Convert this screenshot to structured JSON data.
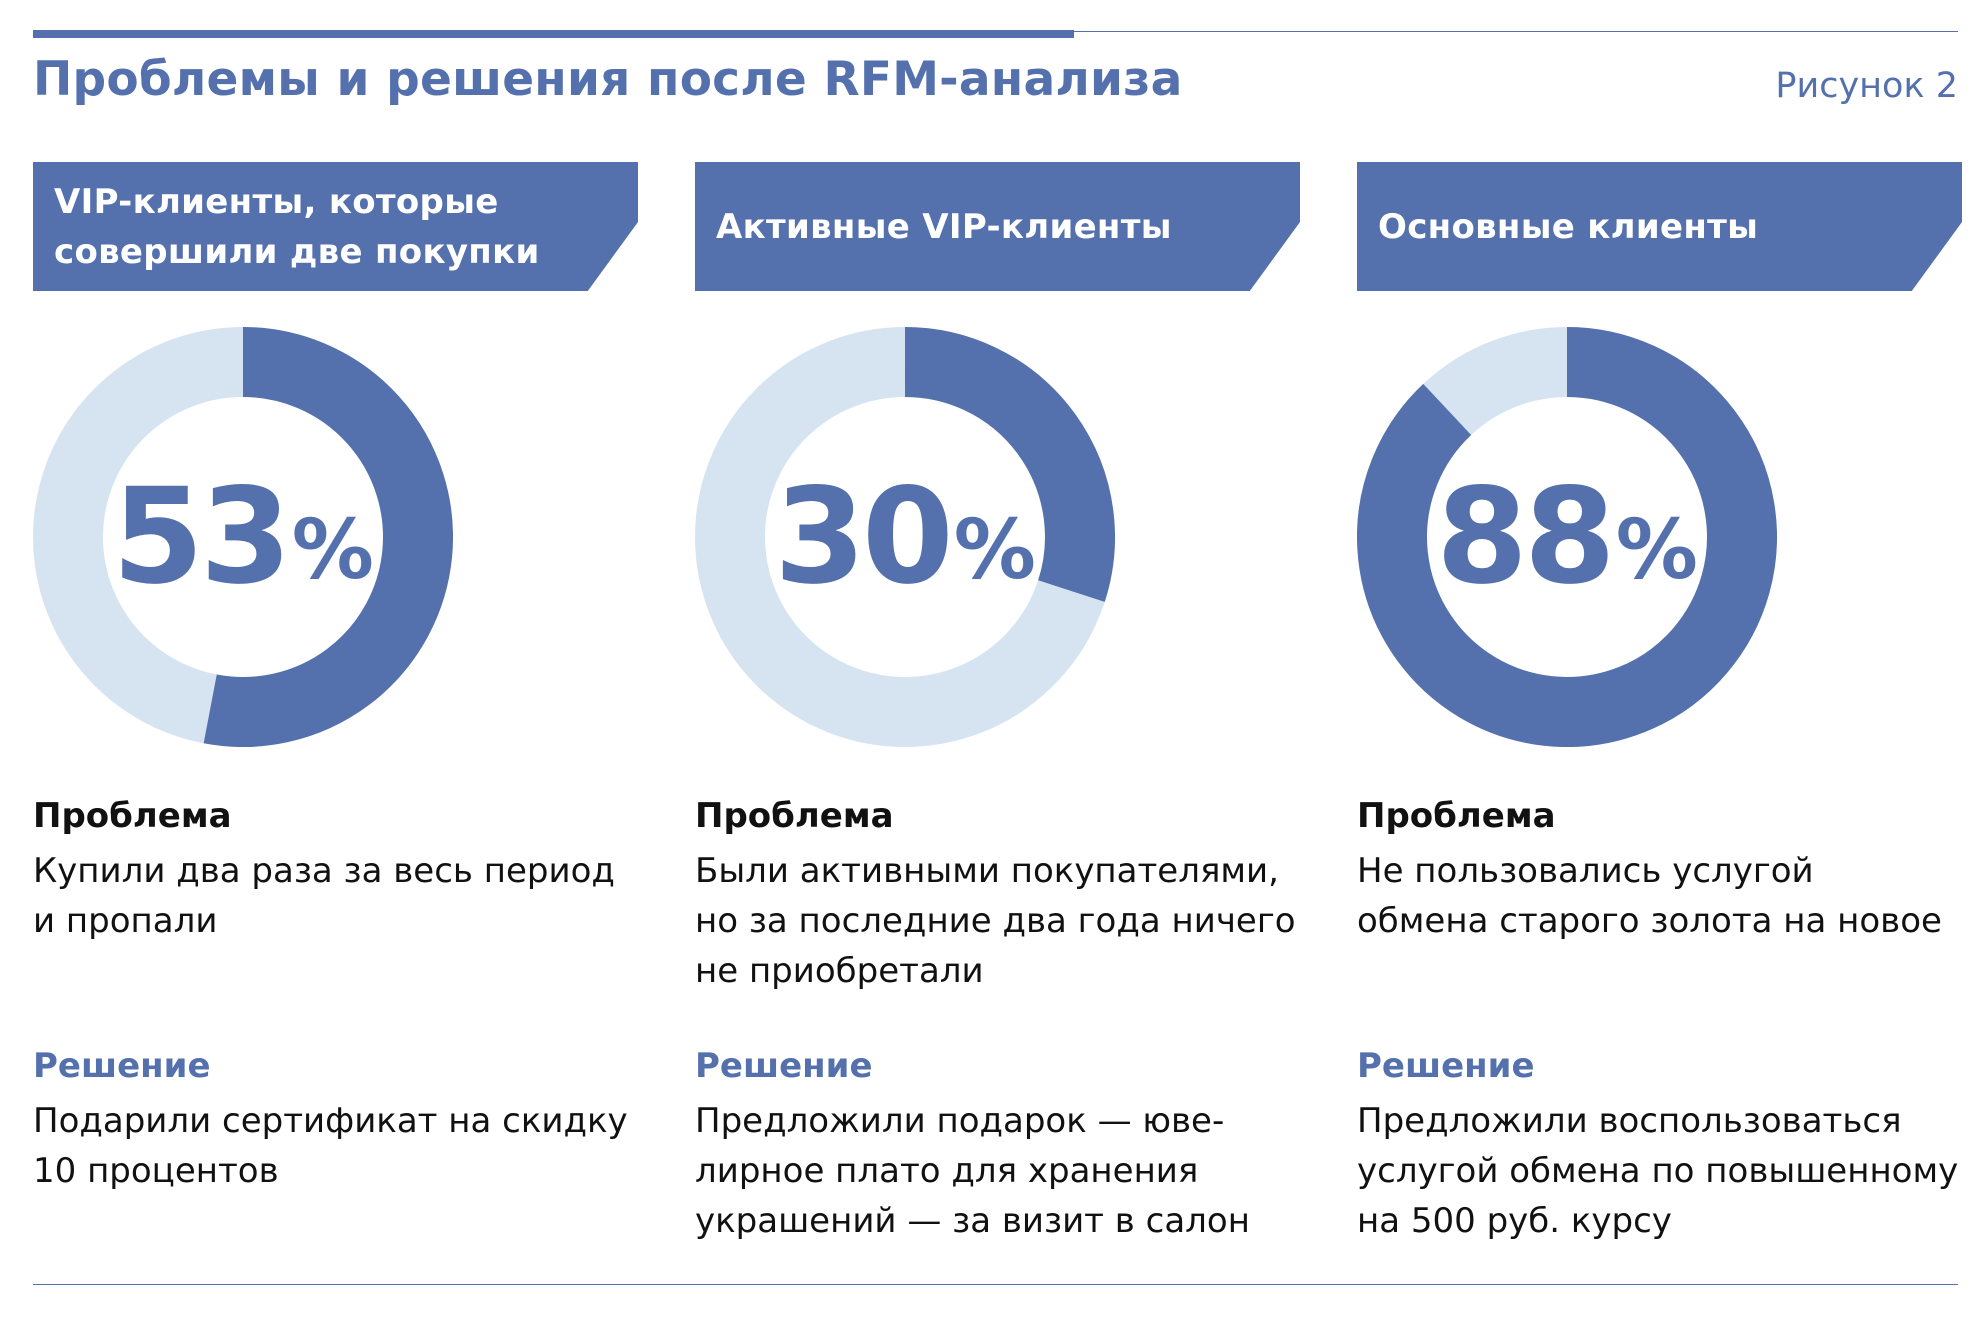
{
  "header": {
    "title": "Проблемы и решения после RFM-анализа",
    "figure_label": "Рисунок 2"
  },
  "colors": {
    "accent": "#5470ad",
    "light": "#d6e4f1",
    "text": "#111111"
  },
  "chart_data": [
    {
      "type": "pie",
      "title": "VIP-клиенты, которые совершили две покупки",
      "value": 53,
      "value_label": "53",
      "unit": "%",
      "problem_heading": "Проблема",
      "problem_text": "Купили два раза за весь период\nи пропали",
      "solution_heading": "Решение",
      "solution_text": "Подарили сертификат на скидку\n10 процентов"
    },
    {
      "type": "pie",
      "title": "Активные VIP-клиенты",
      "value": 30,
      "value_label": "30",
      "unit": "%",
      "problem_heading": "Проблема",
      "problem_text": "Были активными покупателями,\nно за последние два года ничего\nне приобретали",
      "solution_heading": "Решение",
      "solution_text": "Предложили подарок — юве-\nлирное плато для хранения\nукрашений — за визит в салон"
    },
    {
      "type": "pie",
      "title": "Основные клиенты",
      "value": 88,
      "value_label": "88",
      "unit": "%",
      "problem_heading": "Проблема",
      "problem_text": "Не пользовались услугой\nобмена старого золота на новое",
      "solution_heading": "Решение",
      "solution_text": "Предложили воспользоваться\nуслугой обмена по повышенному\nна 500 руб. курсу"
    }
  ]
}
